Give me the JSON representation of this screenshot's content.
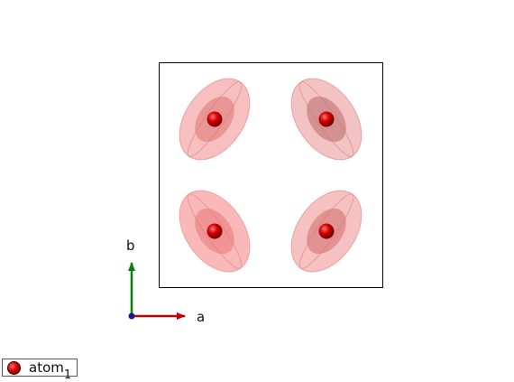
{
  "axes": {
    "a_label": "a",
    "b_label": "b",
    "a_color": "#c40000",
    "b_color": "#0a7d0a",
    "c_color": "#1a1a8c"
  },
  "atom_color": "#d10000",
  "ellipsoid_color": "#f08a8a",
  "legend": {
    "label": "atom",
    "subscript": "1"
  }
}
